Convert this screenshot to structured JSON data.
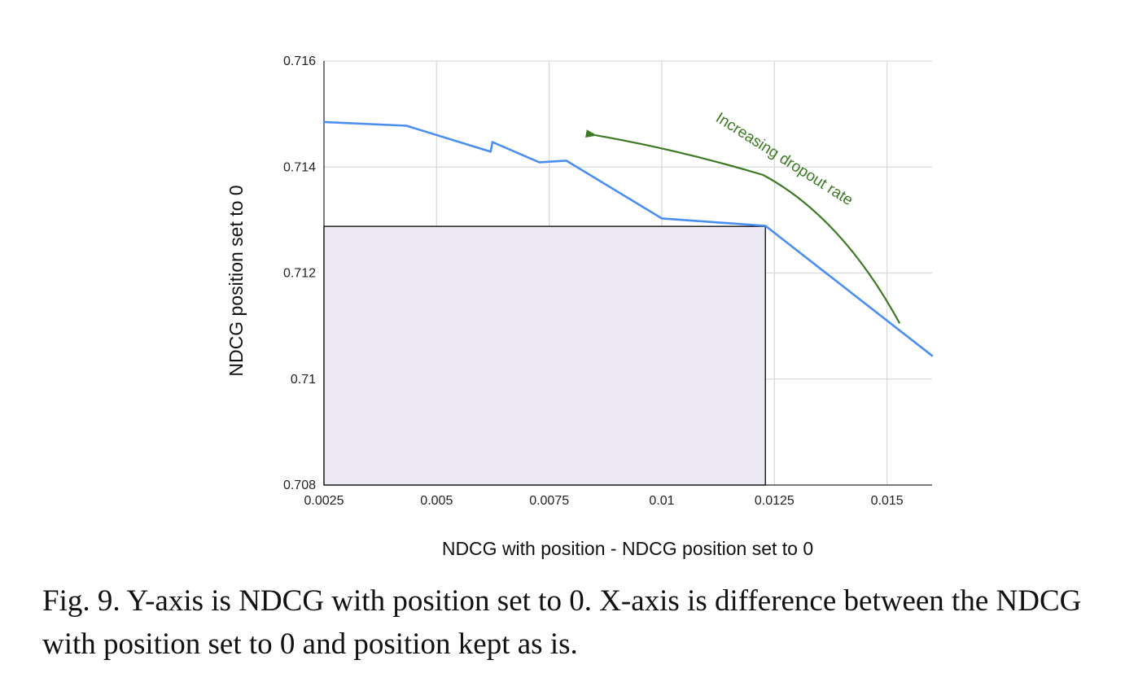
{
  "chart_data": {
    "type": "line",
    "xlabel": "NDCG with position - NDCG position set to 0",
    "ylabel": "NDCG position set to 0",
    "xlim": [
      0.0025,
      0.016
    ],
    "ylim": [
      0.708,
      0.716
    ],
    "xticks": [
      0.0025,
      0.005,
      0.0075,
      0.01,
      0.0125,
      0.015
    ],
    "xtick_labels": [
      "0.0025",
      "0.005",
      "0.0075",
      "0.01",
      "0.0125",
      "0.015"
    ],
    "yticks": [
      0.708,
      0.71,
      0.712,
      0.714,
      0.716
    ],
    "ytick_labels": [
      "0.708",
      "0.71",
      "0.712",
      "0.714",
      "0.716"
    ],
    "grid": true,
    "series": [
      {
        "color": "#4a8ef2",
        "x": [
          0.0025,
          0.00433,
          0.0062,
          0.00624,
          0.00728,
          0.00788,
          0.01,
          0.0123,
          0.016
        ],
        "y": [
          0.71485,
          0.71478,
          0.71429,
          0.71447,
          0.71409,
          0.71412,
          0.71303,
          0.71289,
          0.71044
        ]
      }
    ],
    "highlight_region": {
      "x": [
        0.0025,
        0.0123
      ],
      "y": [
        0.708,
        0.71288
      ],
      "fill": "#ece9f5",
      "stroke": "#222222"
    },
    "annotation": {
      "text": "Increasing dropout rate",
      "color": "#3e7a26",
      "arrow_path": [
        [
          0.01528,
          0.71105
        ],
        [
          0.014,
          0.71305
        ],
        [
          0.01225,
          0.71385
        ],
        [
          0.00853,
          0.7146
        ]
      ]
    }
  },
  "caption": "Fig. 9.  Y-axis is NDCG with position set to 0. X-axis is difference between the NDCG with position set to 0 and position kept as is."
}
